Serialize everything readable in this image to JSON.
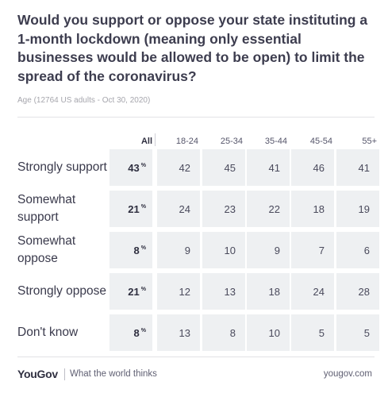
{
  "title": "Would you support or oppose your state instituting a 1-month lockdown (meaning only essential businesses would be allowed to be open) to limit the spread of the coronavirus?",
  "subtitle": "Age (12764 US adults - Oct 30, 2020)",
  "footer": {
    "brand": "YouGov",
    "tagline": "What the world thinks",
    "site": "yougov.com"
  },
  "chart_data": {
    "type": "table",
    "columns": [
      "All",
      "18-24",
      "25-34",
      "35-44",
      "45-54",
      "55+"
    ],
    "rows": [
      {
        "label": "Strongly support",
        "all": 43,
        "values": [
          42,
          45,
          41,
          46,
          41
        ]
      },
      {
        "label": "Somewhat support",
        "all": 21,
        "values": [
          24,
          23,
          22,
          18,
          19
        ]
      },
      {
        "label": "Somewhat oppose",
        "all": 8,
        "values": [
          9,
          10,
          9,
          7,
          6
        ]
      },
      {
        "label": "Strongly oppose",
        "all": 21,
        "values": [
          12,
          13,
          18,
          24,
          28
        ]
      },
      {
        "label": "Don't know",
        "all": 8,
        "values": [
          13,
          8,
          10,
          5,
          5
        ]
      }
    ],
    "unit": "%"
  }
}
